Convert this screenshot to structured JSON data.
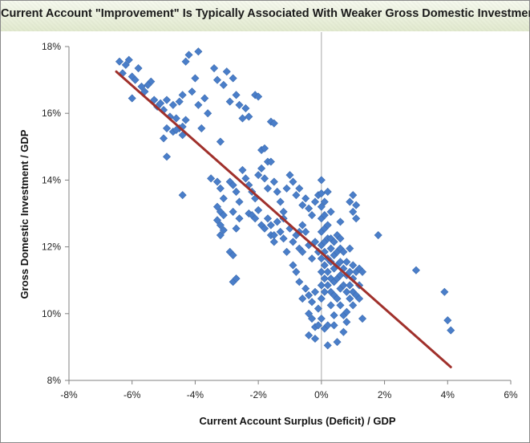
{
  "chart_data": {
    "type": "scatter",
    "title": "Current Account \"Improvement\" Is Typically Associated With Weaker Gross Domestic Investment",
    "xlabel": "Current Account Surplus (Deficit) / GDP",
    "ylabel": "Gross Domestic Investment / GDP",
    "xlim": [
      -0.08,
      0.06
    ],
    "ylim": [
      0.08,
      0.18
    ],
    "xticks": [
      "-8%",
      "-6%",
      "-4%",
      "-2%",
      "0%",
      "2%",
      "4%",
      "6%"
    ],
    "yticks": [
      "8%",
      "10%",
      "12%",
      "14%",
      "16%",
      "18%"
    ],
    "grid": false,
    "legend": "none",
    "colors": {
      "points": "#4a7ec9",
      "trendline": "#a0302b",
      "zero_line": "#a9a9a9"
    },
    "trendline": {
      "x": [
        -0.065,
        0.041
      ],
      "y": [
        0.1725,
        0.084
      ]
    },
    "points": [
      [
        -0.064,
        0.1755
      ],
      [
        -0.062,
        0.1745
      ],
      [
        -0.061,
        0.176
      ],
      [
        -0.063,
        0.172
      ],
      [
        -0.06,
        0.171
      ],
      [
        -0.059,
        0.17
      ],
      [
        -0.058,
        0.1735
      ],
      [
        -0.057,
        0.168
      ],
      [
        -0.06,
        0.1645
      ],
      [
        -0.056,
        0.1665
      ],
      [
        -0.054,
        0.1695
      ],
      [
        -0.055,
        0.1685
      ],
      [
        -0.053,
        0.164
      ],
      [
        -0.052,
        0.162
      ],
      [
        -0.051,
        0.163
      ],
      [
        -0.05,
        0.161
      ],
      [
        -0.049,
        0.164
      ],
      [
        -0.048,
        0.159
      ],
      [
        -0.047,
        0.1625
      ],
      [
        -0.046,
        0.1585
      ],
      [
        -0.045,
        0.1555
      ],
      [
        -0.044,
        0.156
      ],
      [
        -0.043,
        0.158
      ],
      [
        -0.049,
        0.1555
      ],
      [
        -0.05,
        0.1525
      ],
      [
        -0.049,
        0.147
      ],
      [
        -0.047,
        0.1545
      ],
      [
        -0.046,
        0.155
      ],
      [
        -0.045,
        0.1635
      ],
      [
        -0.044,
        0.1655
      ],
      [
        -0.043,
        0.1755
      ],
      [
        -0.042,
        0.1775
      ],
      [
        -0.041,
        0.1665
      ],
      [
        -0.04,
        0.1705
      ],
      [
        -0.039,
        0.1785
      ],
      [
        -0.038,
        0.1555
      ],
      [
        -0.037,
        0.1645
      ],
      [
        -0.036,
        0.16
      ],
      [
        -0.039,
        0.1625
      ],
      [
        -0.044,
        0.1535
      ],
      [
        -0.044,
        0.1355
      ],
      [
        -0.035,
        0.1405
      ],
      [
        -0.034,
        0.1735
      ],
      [
        -0.033,
        0.17
      ],
      [
        -0.032,
        0.1515
      ],
      [
        -0.031,
        0.1685
      ],
      [
        -0.03,
        0.1725
      ],
      [
        -0.029,
        0.1635
      ],
      [
        -0.028,
        0.1705
      ],
      [
        -0.027,
        0.1655
      ],
      [
        -0.026,
        0.1625
      ],
      [
        -0.025,
        0.1585
      ],
      [
        -0.024,
        0.1615
      ],
      [
        -0.023,
        0.159
      ],
      [
        -0.021,
        0.1655
      ],
      [
        -0.02,
        0.165
      ],
      [
        -0.019,
        0.149
      ],
      [
        -0.018,
        0.1495
      ],
      [
        -0.017,
        0.1455
      ],
      [
        -0.016,
        0.1575
      ],
      [
        -0.015,
        0.157
      ],
      [
        -0.033,
        0.1395
      ],
      [
        -0.032,
        0.1375
      ],
      [
        -0.031,
        0.1345
      ],
      [
        -0.033,
        0.132
      ],
      [
        -0.032,
        0.1305
      ],
      [
        -0.031,
        0.1295
      ],
      [
        -0.033,
        0.128
      ],
      [
        -0.032,
        0.1265
      ],
      [
        -0.031,
        0.125
      ],
      [
        -0.032,
        0.1235
      ],
      [
        -0.029,
        0.1395
      ],
      [
        -0.028,
        0.1385
      ],
      [
        -0.027,
        0.1365
      ],
      [
        -0.026,
        0.1335
      ],
      [
        -0.025,
        0.143
      ],
      [
        -0.024,
        0.1405
      ],
      [
        -0.023,
        0.1385
      ],
      [
        -0.022,
        0.1365
      ],
      [
        -0.021,
        0.1345
      ],
      [
        -0.02,
        0.1415
      ],
      [
        -0.019,
        0.1435
      ],
      [
        -0.018,
        0.1405
      ],
      [
        -0.017,
        0.1375
      ],
      [
        -0.016,
        0.1455
      ],
      [
        -0.015,
        0.1395
      ],
      [
        -0.014,
        0.1365
      ],
      [
        -0.013,
        0.1335
      ],
      [
        -0.012,
        0.1305
      ],
      [
        -0.011,
        0.1375
      ],
      [
        -0.028,
        0.1305
      ],
      [
        -0.027,
        0.1255
      ],
      [
        -0.026,
        0.1285
      ],
      [
        -0.029,
        0.1185
      ],
      [
        -0.028,
        0.1175
      ],
      [
        -0.028,
        0.1095
      ],
      [
        -0.027,
        0.1105
      ],
      [
        -0.023,
        0.13
      ],
      [
        -0.022,
        0.1295
      ],
      [
        -0.021,
        0.1285
      ],
      [
        -0.02,
        0.131
      ],
      [
        -0.019,
        0.1265
      ],
      [
        -0.018,
        0.1255
      ],
      [
        -0.017,
        0.1285
      ],
      [
        -0.016,
        0.1235
      ],
      [
        -0.015,
        0.1215
      ],
      [
        -0.014,
        0.1275
      ],
      [
        -0.013,
        0.1245
      ],
      [
        -0.012,
        0.1225
      ],
      [
        -0.011,
        0.1185
      ],
      [
        -0.01,
        0.1415
      ],
      [
        -0.009,
        0.1395
      ],
      [
        -0.008,
        0.1355
      ],
      [
        -0.007,
        0.1375
      ],
      [
        -0.006,
        0.1325
      ],
      [
        -0.005,
        0.1345
      ],
      [
        -0.004,
        0.1315
      ],
      [
        -0.003,
        0.1295
      ],
      [
        -0.002,
        0.1335
      ],
      [
        -0.001,
        0.1355
      ],
      [
        -0.01,
        0.1255
      ],
      [
        -0.009,
        0.1215
      ],
      [
        -0.008,
        0.1235
      ],
      [
        -0.007,
        0.1195
      ],
      [
        -0.006,
        0.1185
      ],
      [
        -0.005,
        0.1245
      ],
      [
        -0.004,
        0.1205
      ],
      [
        -0.003,
        0.1165
      ],
      [
        -0.002,
        0.1215
      ],
      [
        -0.001,
        0.1185
      ],
      [
        -0.009,
        0.1145
      ],
      [
        -0.008,
        0.1125
      ],
      [
        -0.007,
        0.1095
      ],
      [
        -0.005,
        0.1075
      ],
      [
        -0.004,
        0.1055
      ],
      [
        -0.003,
        0.1035
      ],
      [
        -0.002,
        0.1065
      ],
      [
        -0.001,
        0.1015
      ],
      [
        -0.006,
        0.1045
      ],
      [
        -0.004,
        0.1
      ],
      [
        -0.003,
        0.0985
      ],
      [
        -0.002,
        0.096
      ],
      [
        -0.001,
        0.0965
      ],
      [
        -0.004,
        0.0935
      ],
      [
        -0.002,
        0.0925
      ],
      [
        0.0,
        0.14
      ],
      [
        0.0,
        0.136
      ],
      [
        0.0,
        0.132
      ],
      [
        0.0,
        0.1285
      ],
      [
        0.0,
        0.1245
      ],
      [
        0.0,
        0.1205
      ],
      [
        0.0,
        0.1165
      ],
      [
        0.0,
        0.1125
      ],
      [
        0.0,
        0.1085
      ],
      [
        0.0,
        0.1045
      ],
      [
        0.0,
        0.0985
      ],
      [
        0.001,
        0.1335
      ],
      [
        0.001,
        0.1295
      ],
      [
        0.001,
        0.1255
      ],
      [
        0.001,
        0.1215
      ],
      [
        0.001,
        0.1185
      ],
      [
        0.001,
        0.1145
      ],
      [
        0.001,
        0.1105
      ],
      [
        0.001,
        0.1065
      ],
      [
        0.001,
        0.0955
      ],
      [
        0.002,
        0.1365
      ],
      [
        0.002,
        0.1265
      ],
      [
        0.002,
        0.1225
      ],
      [
        0.002,
        0.1165
      ],
      [
        0.002,
        0.1125
      ],
      [
        0.002,
        0.1085
      ],
      [
        0.002,
        0.0905
      ],
      [
        0.002,
        0.0965
      ],
      [
        0.003,
        0.1225
      ],
      [
        0.003,
        0.1195
      ],
      [
        0.003,
        0.1155
      ],
      [
        0.003,
        0.1105
      ],
      [
        0.003,
        0.1065
      ],
      [
        0.003,
        0.1025
      ],
      [
        0.004,
        0.1215
      ],
      [
        0.004,
        0.1175
      ],
      [
        0.004,
        0.1135
      ],
      [
        0.004,
        0.1095
      ],
      [
        0.004,
        0.1055
      ],
      [
        0.004,
        0.0995
      ],
      [
        0.004,
        0.0965
      ],
      [
        0.005,
        0.1235
      ],
      [
        0.005,
        0.1185
      ],
      [
        0.005,
        0.1145
      ],
      [
        0.005,
        0.1105
      ],
      [
        0.005,
        0.1045
      ],
      [
        0.005,
        0.0915
      ],
      [
        0.006,
        0.1275
      ],
      [
        0.006,
        0.1195
      ],
      [
        0.006,
        0.1155
      ],
      [
        0.006,
        0.1115
      ],
      [
        0.006,
        0.1075
      ],
      [
        0.006,
        0.1025
      ],
      [
        0.007,
        0.1185
      ],
      [
        0.007,
        0.1135
      ],
      [
        0.007,
        0.1085
      ],
      [
        0.007,
        0.0995
      ],
      [
        0.007,
        0.0945
      ],
      [
        0.008,
        0.1155
      ],
      [
        0.008,
        0.1115
      ],
      [
        0.008,
        0.1065
      ],
      [
        0.008,
        0.1005
      ],
      [
        0.008,
        0.0975
      ],
      [
        0.009,
        0.1195
      ],
      [
        0.009,
        0.1125
      ],
      [
        0.009,
        0.1085
      ],
      [
        0.009,
        0.1045
      ],
      [
        0.01,
        0.1355
      ],
      [
        0.01,
        0.1305
      ],
      [
        0.01,
        0.1145
      ],
      [
        0.01,
        0.1105
      ],
      [
        0.01,
        0.1065
      ],
      [
        0.01,
        0.1025
      ],
      [
        0.011,
        0.1285
      ],
      [
        0.011,
        0.1125
      ],
      [
        0.011,
        0.1055
      ],
      [
        0.012,
        0.1135
      ],
      [
        0.012,
        0.1085
      ],
      [
        0.012,
        0.1045
      ],
      [
        0.013,
        0.1125
      ],
      [
        0.013,
        0.0985
      ],
      [
        0.018,
        0.1235
      ],
      [
        0.03,
        0.113
      ],
      [
        0.039,
        0.1065
      ],
      [
        0.04,
        0.098
      ],
      [
        0.041,
        0.095
      ],
      [
        0.009,
        0.1335
      ],
      [
        0.011,
        0.1325
      ],
      [
        -0.016,
        0.1265
      ],
      [
        -0.015,
        0.1235
      ],
      [
        -0.006,
        0.1265
      ],
      [
        -0.007,
        0.1245
      ],
      [
        -0.012,
        0.1285
      ],
      [
        0.003,
        0.1305
      ],
      [
        0.006,
        0.1225
      ]
    ]
  }
}
